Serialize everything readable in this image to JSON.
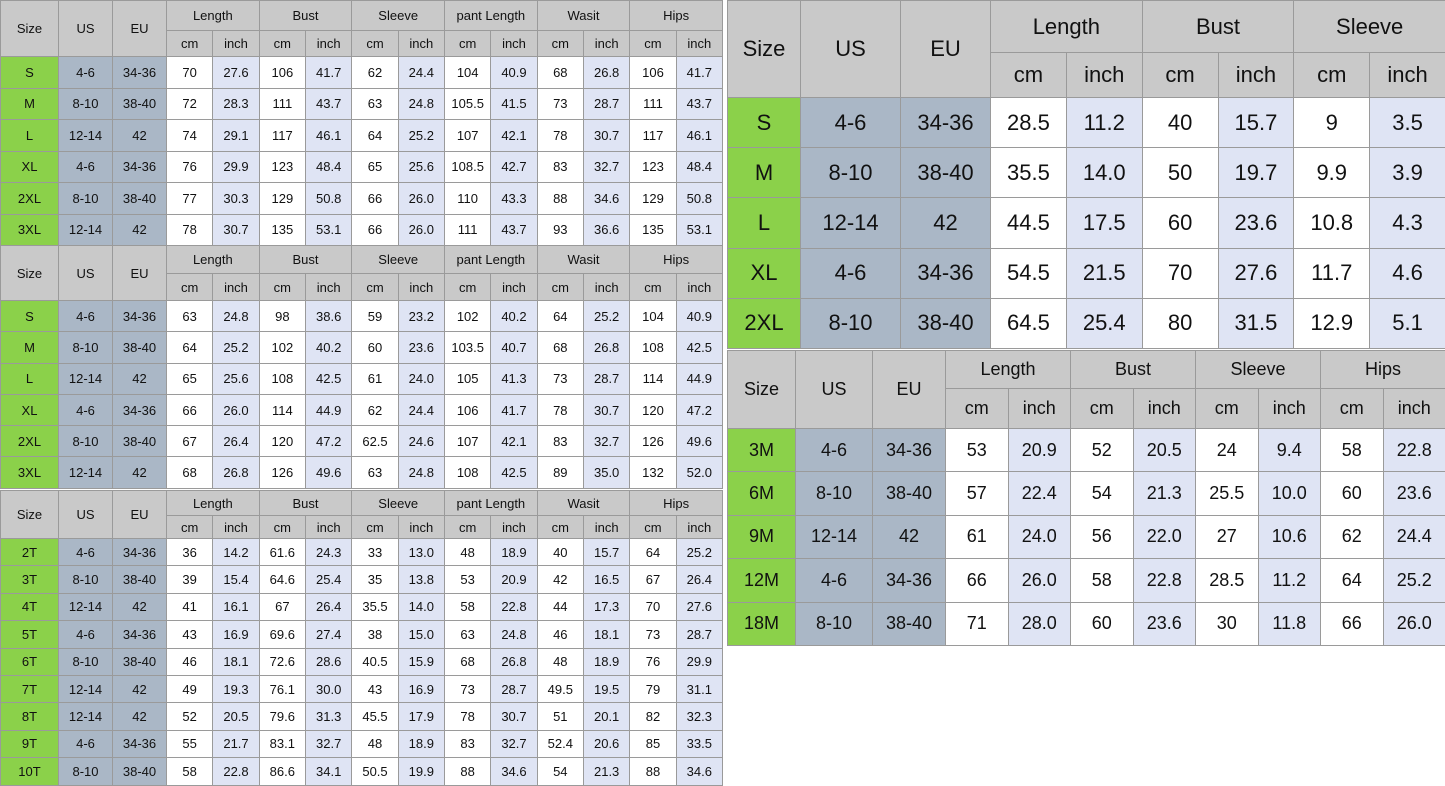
{
  "colors": {
    "header": "#c9c9c9",
    "size_column": "#8bd14a",
    "us_eu_columns": "#aab7c6",
    "inch_columns": "#dfe4f4",
    "cm_columns": "#ffffff"
  },
  "tables": [
    {
      "size_header": "Size",
      "us_header": "US",
      "eu_header": "EU",
      "groups": [
        "Length",
        "Bust",
        "Sleeve",
        "pant Length",
        "Wasit",
        "Hips"
      ],
      "units": [
        "cm",
        "inch"
      ],
      "rows": [
        {
          "size": "S",
          "us": "4-6",
          "eu": "34-36",
          "values": [
            "70",
            "27.6",
            "106",
            "41.7",
            "62",
            "24.4",
            "104",
            "40.9",
            "68",
            "26.8",
            "106",
            "41.7"
          ]
        },
        {
          "size": "M",
          "us": "8-10",
          "eu": "38-40",
          "values": [
            "72",
            "28.3",
            "111",
            "43.7",
            "63",
            "24.8",
            "105.5",
            "41.5",
            "73",
            "28.7",
            "111",
            "43.7"
          ]
        },
        {
          "size": "L",
          "us": "12-14",
          "eu": "42",
          "values": [
            "74",
            "29.1",
            "117",
            "46.1",
            "64",
            "25.2",
            "107",
            "42.1",
            "78",
            "30.7",
            "117",
            "46.1"
          ]
        },
        {
          "size": "XL",
          "us": "4-6",
          "eu": "34-36",
          "values": [
            "76",
            "29.9",
            "123",
            "48.4",
            "65",
            "25.6",
            "108.5",
            "42.7",
            "83",
            "32.7",
            "123",
            "48.4"
          ]
        },
        {
          "size": "2XL",
          "us": "8-10",
          "eu": "38-40",
          "values": [
            "77",
            "30.3",
            "129",
            "50.8",
            "66",
            "26.0",
            "110",
            "43.3",
            "88",
            "34.6",
            "129",
            "50.8"
          ]
        },
        {
          "size": "3XL",
          "us": "12-14",
          "eu": "42",
          "values": [
            "78",
            "30.7",
            "135",
            "53.1",
            "66",
            "26.0",
            "111",
            "43.7",
            "93",
            "36.6",
            "135",
            "53.1"
          ]
        }
      ]
    },
    {
      "size_header": "Size",
      "us_header": "US",
      "eu_header": "EU",
      "groups": [
        "Length",
        "Bust",
        "Sleeve",
        "pant Length",
        "Wasit",
        "Hips"
      ],
      "units": [
        "cm",
        "inch"
      ],
      "rows": [
        {
          "size": "S",
          "us": "4-6",
          "eu": "34-36",
          "values": [
            "63",
            "24.8",
            "98",
            "38.6",
            "59",
            "23.2",
            "102",
            "40.2",
            "64",
            "25.2",
            "104",
            "40.9"
          ]
        },
        {
          "size": "M",
          "us": "8-10",
          "eu": "38-40",
          "values": [
            "64",
            "25.2",
            "102",
            "40.2",
            "60",
            "23.6",
            "103.5",
            "40.7",
            "68",
            "26.8",
            "108",
            "42.5"
          ]
        },
        {
          "size": "L",
          "us": "12-14",
          "eu": "42",
          "values": [
            "65",
            "25.6",
            "108",
            "42.5",
            "61",
            "24.0",
            "105",
            "41.3",
            "73",
            "28.7",
            "114",
            "44.9"
          ]
        },
        {
          "size": "XL",
          "us": "4-6",
          "eu": "34-36",
          "values": [
            "66",
            "26.0",
            "114",
            "44.9",
            "62",
            "24.4",
            "106",
            "41.7",
            "78",
            "30.7",
            "120",
            "47.2"
          ]
        },
        {
          "size": "2XL",
          "us": "8-10",
          "eu": "38-40",
          "values": [
            "67",
            "26.4",
            "120",
            "47.2",
            "62.5",
            "24.6",
            "107",
            "42.1",
            "83",
            "32.7",
            "126",
            "49.6"
          ]
        },
        {
          "size": "3XL",
          "us": "12-14",
          "eu": "42",
          "values": [
            "68",
            "26.8",
            "126",
            "49.6",
            "63",
            "24.8",
            "108",
            "42.5",
            "89",
            "35.0",
            "132",
            "52.0"
          ]
        }
      ]
    },
    {
      "size_header": "Size",
      "us_header": "US",
      "eu_header": "EU",
      "groups": [
        "Length",
        "Bust",
        "Sleeve",
        "pant Length",
        "Wasit",
        "Hips"
      ],
      "units": [
        "cm",
        "inch"
      ],
      "rows": [
        {
          "size": "2T",
          "us": "4-6",
          "eu": "34-36",
          "values": [
            "36",
            "14.2",
            "61.6",
            "24.3",
            "33",
            "13.0",
            "48",
            "18.9",
            "40",
            "15.7",
            "64",
            "25.2"
          ]
        },
        {
          "size": "3T",
          "us": "8-10",
          "eu": "38-40",
          "values": [
            "39",
            "15.4",
            "64.6",
            "25.4",
            "35",
            "13.8",
            "53",
            "20.9",
            "42",
            "16.5",
            "67",
            "26.4"
          ]
        },
        {
          "size": "4T",
          "us": "12-14",
          "eu": "42",
          "values": [
            "41",
            "16.1",
            "67",
            "26.4",
            "35.5",
            "14.0",
            "58",
            "22.8",
            "44",
            "17.3",
            "70",
            "27.6"
          ]
        },
        {
          "size": "5T",
          "us": "4-6",
          "eu": "34-36",
          "values": [
            "43",
            "16.9",
            "69.6",
            "27.4",
            "38",
            "15.0",
            "63",
            "24.8",
            "46",
            "18.1",
            "73",
            "28.7"
          ]
        },
        {
          "size": "6T",
          "us": "8-10",
          "eu": "38-40",
          "values": [
            "46",
            "18.1",
            "72.6",
            "28.6",
            "40.5",
            "15.9",
            "68",
            "26.8",
            "48",
            "18.9",
            "76",
            "29.9"
          ]
        },
        {
          "size": "7T",
          "us": "12-14",
          "eu": "42",
          "values": [
            "49",
            "19.3",
            "76.1",
            "30.0",
            "43",
            "16.9",
            "73",
            "28.7",
            "49.5",
            "19.5",
            "79",
            "31.1"
          ]
        },
        {
          "size": "8T",
          "us": "12-14",
          "eu": "42",
          "values": [
            "52",
            "20.5",
            "79.6",
            "31.3",
            "45.5",
            "17.9",
            "78",
            "30.7",
            "51",
            "20.1",
            "82",
            "32.3"
          ]
        },
        {
          "size": "9T",
          "us": "4-6",
          "eu": "34-36",
          "values": [
            "55",
            "21.7",
            "83.1",
            "32.7",
            "48",
            "18.9",
            "83",
            "32.7",
            "52.4",
            "20.6",
            "85",
            "33.5"
          ]
        },
        {
          "size": "10T",
          "us": "8-10",
          "eu": "38-40",
          "values": [
            "58",
            "22.8",
            "86.6",
            "34.1",
            "50.5",
            "19.9",
            "88",
            "34.6",
            "54",
            "21.3",
            "88",
            "34.6"
          ]
        }
      ]
    },
    {
      "size_header": "Size",
      "us_header": "US",
      "eu_header": "EU",
      "groups": [
        "Length",
        "Bust",
        "Sleeve"
      ],
      "units": [
        "cm",
        "inch"
      ],
      "rows": [
        {
          "size": "S",
          "us": "4-6",
          "eu": "34-36",
          "values": [
            "28.5",
            "11.2",
            "40",
            "15.7",
            "9",
            "3.5"
          ]
        },
        {
          "size": "M",
          "us": "8-10",
          "eu": "38-40",
          "values": [
            "35.5",
            "14.0",
            "50",
            "19.7",
            "9.9",
            "3.9"
          ]
        },
        {
          "size": "L",
          "us": "12-14",
          "eu": "42",
          "values": [
            "44.5",
            "17.5",
            "60",
            "23.6",
            "10.8",
            "4.3"
          ]
        },
        {
          "size": "XL",
          "us": "4-6",
          "eu": "34-36",
          "values": [
            "54.5",
            "21.5",
            "70",
            "27.6",
            "11.7",
            "4.6"
          ]
        },
        {
          "size": "2XL",
          "us": "8-10",
          "eu": "38-40",
          "values": [
            "64.5",
            "25.4",
            "80",
            "31.5",
            "12.9",
            "5.1"
          ]
        }
      ]
    },
    {
      "size_header": "Size",
      "us_header": "US",
      "eu_header": "EU",
      "groups": [
        "Length",
        "Bust",
        "Sleeve",
        "Hips"
      ],
      "units": [
        "cm",
        "inch"
      ],
      "rows": [
        {
          "size": "3M",
          "us": "4-6",
          "eu": "34-36",
          "values": [
            "53",
            "20.9",
            "52",
            "20.5",
            "24",
            "9.4",
            "58",
            "22.8"
          ]
        },
        {
          "size": "6M",
          "us": "8-10",
          "eu": "38-40",
          "values": [
            "57",
            "22.4",
            "54",
            "21.3",
            "25.5",
            "10.0",
            "60",
            "23.6"
          ]
        },
        {
          "size": "9M",
          "us": "12-14",
          "eu": "42",
          "values": [
            "61",
            "24.0",
            "56",
            "22.0",
            "27",
            "10.6",
            "62",
            "24.4"
          ]
        },
        {
          "size": "12M",
          "us": "4-6",
          "eu": "34-36",
          "values": [
            "66",
            "26.0",
            "58",
            "22.8",
            "28.5",
            "11.2",
            "64",
            "25.2"
          ]
        },
        {
          "size": "18M",
          "us": "8-10",
          "eu": "38-40",
          "values": [
            "71",
            "28.0",
            "60",
            "23.6",
            "30",
            "11.8",
            "66",
            "26.0"
          ]
        }
      ]
    }
  ]
}
